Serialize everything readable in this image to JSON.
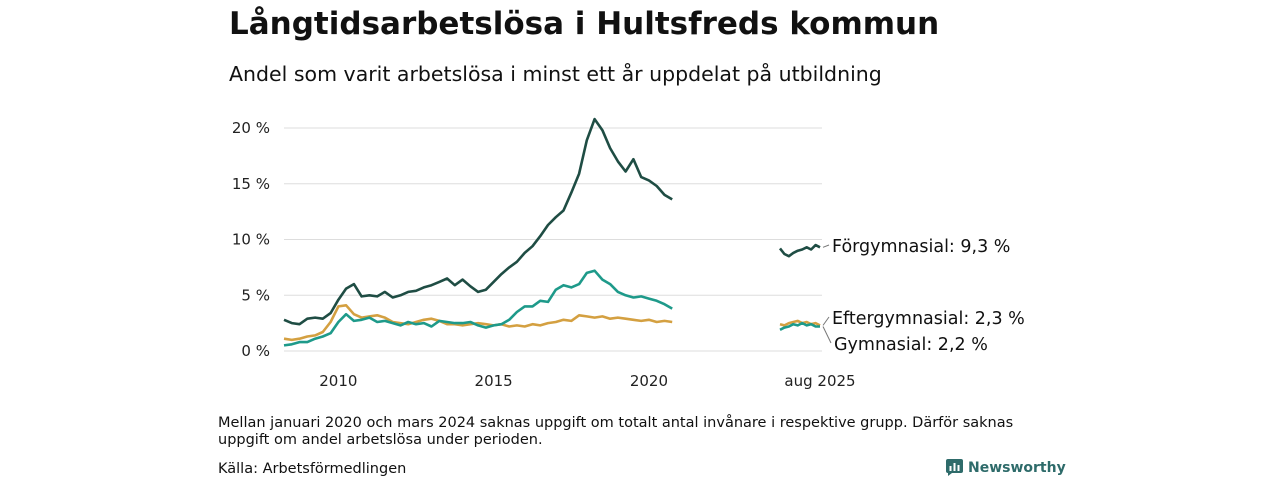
{
  "title": "Långtidsarbetslösa i Hultsfreds kommun",
  "subtitle": "Andel som varit arbetslösa i minst ett år uppdelat på utbildning",
  "note": "Mellan januari 2020 och mars 2024 saknas uppgift om totalt antal invånare i respektive grupp. Därför saknas uppgift om andel arbetslösa under perioden.",
  "source": "Källa: Arbetsförmedlingen",
  "brand": "Newsworthy",
  "colors": {
    "forgymnasial": "#1f4d44",
    "gymnasial": "#1e9a8a",
    "eftergymnasial": "#d4a041",
    "grid": "#dddddd",
    "brand": "#2e6b6a"
  },
  "chart_data": {
    "type": "line",
    "ylim": [
      0,
      20
    ],
    "yticks": [
      0,
      5,
      10,
      15,
      20
    ],
    "ytick_labels": [
      "0 %",
      "5 %",
      "10 %",
      "15 %",
      "20 %"
    ],
    "xtick_labels": [
      {
        "x": 2010,
        "label": "2010"
      },
      {
        "x": 2015,
        "label": "2015"
      },
      {
        "x": 2020,
        "label": "2020"
      }
    ],
    "inset_label": "aug 2025",
    "series": [
      {
        "name": "Förgymnasial",
        "end_label": "Förgymnasial: 9,3 %",
        "color": "#1f4d44",
        "points": [
          [
            2008.25,
            2.8
          ],
          [
            2008.5,
            2.5
          ],
          [
            2008.75,
            2.4
          ],
          [
            2009.0,
            2.9
          ],
          [
            2009.25,
            3.0
          ],
          [
            2009.5,
            2.9
          ],
          [
            2009.75,
            3.4
          ],
          [
            2010.0,
            4.6
          ],
          [
            2010.25,
            5.6
          ],
          [
            2010.5,
            6.0
          ],
          [
            2010.75,
            4.9
          ],
          [
            2011.0,
            5.0
          ],
          [
            2011.25,
            4.9
          ],
          [
            2011.5,
            5.3
          ],
          [
            2011.75,
            4.8
          ],
          [
            2012.0,
            5.0
          ],
          [
            2012.25,
            5.3
          ],
          [
            2012.5,
            5.4
          ],
          [
            2012.75,
            5.7
          ],
          [
            2013.0,
            5.9
          ],
          [
            2013.25,
            6.2
          ],
          [
            2013.5,
            6.5
          ],
          [
            2013.75,
            5.9
          ],
          [
            2014.0,
            6.4
          ],
          [
            2014.25,
            5.8
          ],
          [
            2014.5,
            5.3
          ],
          [
            2014.75,
            5.5
          ],
          [
            2015.0,
            6.2
          ],
          [
            2015.25,
            6.9
          ],
          [
            2015.5,
            7.5
          ],
          [
            2015.75,
            8.0
          ],
          [
            2016.0,
            8.8
          ],
          [
            2016.25,
            9.4
          ],
          [
            2016.5,
            10.3
          ],
          [
            2016.75,
            11.3
          ],
          [
            2017.0,
            12.0
          ],
          [
            2017.25,
            12.6
          ],
          [
            2017.5,
            14.2
          ],
          [
            2017.75,
            15.9
          ],
          [
            2018.0,
            18.9
          ],
          [
            2018.25,
            20.8
          ],
          [
            2018.5,
            19.8
          ],
          [
            2018.75,
            18.2
          ],
          [
            2019.0,
            17.0
          ],
          [
            2019.25,
            16.1
          ],
          [
            2019.5,
            17.2
          ],
          [
            2019.75,
            15.6
          ],
          [
            2020.0,
            15.3
          ],
          [
            2020.25,
            14.8
          ],
          [
            2020.5,
            14.0
          ],
          [
            2020.75,
            13.6
          ]
        ],
        "inset_points": [
          [
            2024.25,
            9.2
          ],
          [
            2024.4,
            8.7
          ],
          [
            2024.55,
            8.5
          ],
          [
            2024.7,
            8.8
          ],
          [
            2024.85,
            9.0
          ],
          [
            2025.0,
            9.1
          ],
          [
            2025.15,
            9.3
          ],
          [
            2025.3,
            9.1
          ],
          [
            2025.45,
            9.5
          ],
          [
            2025.6,
            9.3
          ]
        ]
      },
      {
        "name": "Gymnasial",
        "end_label": "Gymnasial: 2,2 %",
        "color": "#1e9a8a",
        "points": [
          [
            2008.25,
            0.5
          ],
          [
            2008.5,
            0.6
          ],
          [
            2008.75,
            0.8
          ],
          [
            2009.0,
            0.8
          ],
          [
            2009.25,
            1.1
          ],
          [
            2009.5,
            1.3
          ],
          [
            2009.75,
            1.6
          ],
          [
            2010.0,
            2.6
          ],
          [
            2010.25,
            3.3
          ],
          [
            2010.5,
            2.7
          ],
          [
            2010.75,
            2.8
          ],
          [
            2011.0,
            3.0
          ],
          [
            2011.25,
            2.6
          ],
          [
            2011.5,
            2.7
          ],
          [
            2011.75,
            2.5
          ],
          [
            2012.0,
            2.3
          ],
          [
            2012.25,
            2.6
          ],
          [
            2012.5,
            2.4
          ],
          [
            2012.75,
            2.5
          ],
          [
            2013.0,
            2.2
          ],
          [
            2013.25,
            2.7
          ],
          [
            2013.5,
            2.6
          ],
          [
            2013.75,
            2.5
          ],
          [
            2014.0,
            2.5
          ],
          [
            2014.25,
            2.6
          ],
          [
            2014.5,
            2.3
          ],
          [
            2014.75,
            2.1
          ],
          [
            2015.0,
            2.3
          ],
          [
            2015.25,
            2.4
          ],
          [
            2015.5,
            2.8
          ],
          [
            2015.75,
            3.5
          ],
          [
            2016.0,
            4.0
          ],
          [
            2016.25,
            4.0
          ],
          [
            2016.5,
            4.5
          ],
          [
            2016.75,
            4.4
          ],
          [
            2017.0,
            5.5
          ],
          [
            2017.25,
            5.9
          ],
          [
            2017.5,
            5.7
          ],
          [
            2017.75,
            6.0
          ],
          [
            2018.0,
            7.0
          ],
          [
            2018.25,
            7.2
          ],
          [
            2018.5,
            6.4
          ],
          [
            2018.75,
            6.0
          ],
          [
            2019.0,
            5.3
          ],
          [
            2019.25,
            5.0
          ],
          [
            2019.5,
            4.8
          ],
          [
            2019.75,
            4.9
          ],
          [
            2020.0,
            4.7
          ],
          [
            2020.25,
            4.5
          ],
          [
            2020.5,
            4.2
          ],
          [
            2020.75,
            3.8
          ]
        ],
        "inset_points": [
          [
            2024.25,
            1.9
          ],
          [
            2024.4,
            2.1
          ],
          [
            2024.55,
            2.2
          ],
          [
            2024.7,
            2.4
          ],
          [
            2024.85,
            2.3
          ],
          [
            2025.0,
            2.5
          ],
          [
            2025.15,
            2.3
          ],
          [
            2025.3,
            2.4
          ],
          [
            2025.45,
            2.2
          ],
          [
            2025.6,
            2.2
          ]
        ]
      },
      {
        "name": "Eftergymnasial",
        "end_label": "Eftergymnasial: 2,3 %",
        "color": "#d4a041",
        "points": [
          [
            2008.25,
            1.1
          ],
          [
            2008.5,
            1.0
          ],
          [
            2008.75,
            1.1
          ],
          [
            2009.0,
            1.3
          ],
          [
            2009.25,
            1.4
          ],
          [
            2009.5,
            1.7
          ],
          [
            2009.75,
            2.6
          ],
          [
            2010.0,
            4.0
          ],
          [
            2010.25,
            4.1
          ],
          [
            2010.5,
            3.3
          ],
          [
            2010.75,
            3.0
          ],
          [
            2011.0,
            3.1
          ],
          [
            2011.25,
            3.2
          ],
          [
            2011.5,
            3.0
          ],
          [
            2011.75,
            2.6
          ],
          [
            2012.0,
            2.5
          ],
          [
            2012.25,
            2.4
          ],
          [
            2012.5,
            2.6
          ],
          [
            2012.75,
            2.8
          ],
          [
            2013.0,
            2.9
          ],
          [
            2013.25,
            2.7
          ],
          [
            2013.5,
            2.4
          ],
          [
            2013.75,
            2.4
          ],
          [
            2014.0,
            2.3
          ],
          [
            2014.25,
            2.4
          ],
          [
            2014.5,
            2.5
          ],
          [
            2014.75,
            2.4
          ],
          [
            2015.0,
            2.3
          ],
          [
            2015.25,
            2.4
          ],
          [
            2015.5,
            2.2
          ],
          [
            2015.75,
            2.3
          ],
          [
            2016.0,
            2.2
          ],
          [
            2016.25,
            2.4
          ],
          [
            2016.5,
            2.3
          ],
          [
            2016.75,
            2.5
          ],
          [
            2017.0,
            2.6
          ],
          [
            2017.25,
            2.8
          ],
          [
            2017.5,
            2.7
          ],
          [
            2017.75,
            3.2
          ],
          [
            2018.0,
            3.1
          ],
          [
            2018.25,
            3.0
          ],
          [
            2018.5,
            3.1
          ],
          [
            2018.75,
            2.9
          ],
          [
            2019.0,
            3.0
          ],
          [
            2019.25,
            2.9
          ],
          [
            2019.5,
            2.8
          ],
          [
            2019.75,
            2.7
          ],
          [
            2020.0,
            2.8
          ],
          [
            2020.25,
            2.6
          ],
          [
            2020.5,
            2.7
          ],
          [
            2020.75,
            2.6
          ]
        ],
        "inset_points": [
          [
            2024.25,
            2.4
          ],
          [
            2024.4,
            2.3
          ],
          [
            2024.55,
            2.5
          ],
          [
            2024.7,
            2.6
          ],
          [
            2024.85,
            2.7
          ],
          [
            2025.0,
            2.5
          ],
          [
            2025.15,
            2.6
          ],
          [
            2025.3,
            2.4
          ],
          [
            2025.45,
            2.5
          ],
          [
            2025.6,
            2.3
          ]
        ]
      }
    ]
  }
}
